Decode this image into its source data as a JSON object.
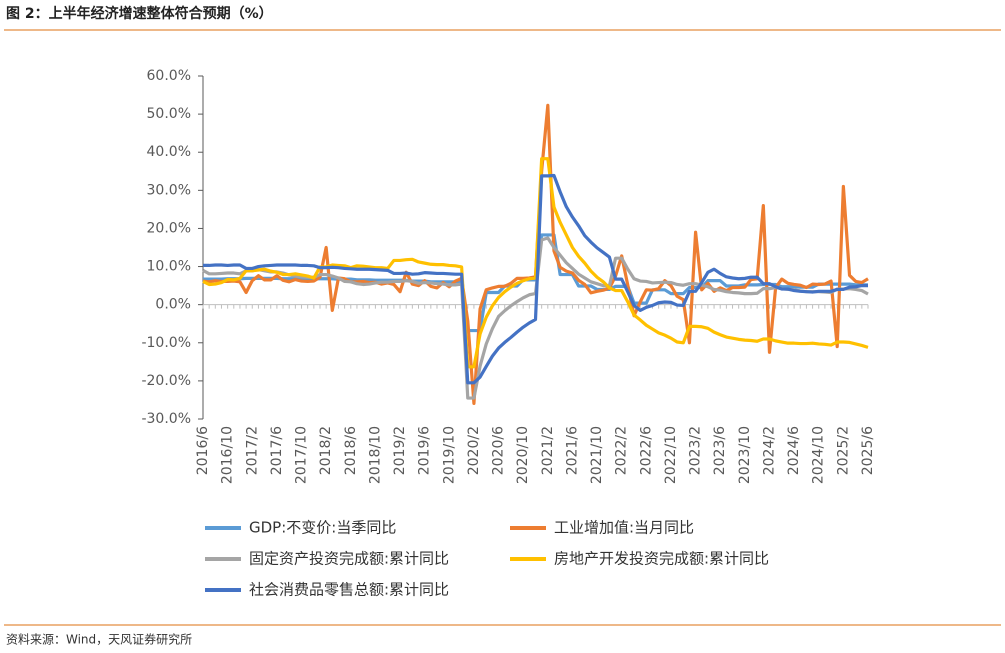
{
  "chart_data": {
    "type": "line",
    "title": "图 2：上半年经济增速整体符合预期（%）",
    "source": "资料来源：Wind，天风证券研究所",
    "categories": [
      "2016/6",
      null,
      null,
      null,
      "2016/10",
      null,
      null,
      null,
      "2017/2",
      null,
      null,
      null,
      "2017/6",
      null,
      null,
      null,
      "2017/10",
      null,
      null,
      null,
      "2018/2",
      null,
      null,
      null,
      "2018/6",
      null,
      null,
      null,
      "2018/10",
      null,
      null,
      null,
      "2019/2",
      null,
      null,
      null,
      "2019/6",
      null,
      null,
      null,
      "2019/10",
      null,
      null,
      null,
      "2020/2",
      null,
      null,
      null,
      "2020/6",
      null,
      null,
      null,
      "2020/10",
      null,
      null,
      null,
      "2021/2",
      null,
      null,
      null,
      "2021/6",
      null,
      null,
      null,
      "2021/10",
      null,
      null,
      null,
      "2022/2",
      null,
      null,
      null,
      "2022/6",
      null,
      null,
      null,
      "2022/10",
      null,
      null,
      null,
      "2023/2",
      null,
      null,
      null,
      "2023/6",
      null,
      null,
      null,
      "2023/10",
      null,
      null,
      null,
      "2024/2",
      null,
      null,
      null,
      "2024/6",
      null,
      null,
      null,
      "2024/10",
      null,
      null,
      null,
      "2025/2",
      null,
      null,
      null,
      "2025/6"
    ],
    "series": [
      {
        "name": "GDP:不变价:当季同比",
        "color": "#5b9bd5",
        "values": [
          6.7,
          6.7,
          6.7,
          6.7,
          6.8,
          6.8,
          6.8,
          6.9,
          6.9,
          6.9,
          6.9,
          6.9,
          6.9,
          6.8,
          6.8,
          6.8,
          6.8,
          6.8,
          6.8,
          6.8,
          6.8,
          6.8,
          6.7,
          6.7,
          6.7,
          6.5,
          6.5,
          6.5,
          6.4,
          6.4,
          6.4,
          6.4,
          6.4,
          6.4,
          6.2,
          6.2,
          6.2,
          6.0,
          6.0,
          6.0,
          6.0,
          6.0,
          6.0,
          -6.8,
          -6.8,
          -6.8,
          3.2,
          3.2,
          3.2,
          4.9,
          4.9,
          4.9,
          6.5,
          6.5,
          6.5,
          18.3,
          18.3,
          18.3,
          7.9,
          7.9,
          7.9,
          4.9,
          4.9,
          4.9,
          4.0,
          4.0,
          4.0,
          4.8,
          4.8,
          4.8,
          0.4,
          0.4,
          0.4,
          3.9,
          3.9,
          3.9,
          2.9,
          2.9,
          2.9,
          4.5,
          4.5,
          4.5,
          6.3,
          6.3,
          6.3,
          4.9,
          4.9,
          4.9,
          5.2,
          5.2,
          5.2,
          5.3,
          5.3,
          5.3,
          4.7,
          4.7,
          4.7,
          4.6,
          4.6,
          4.6,
          5.4,
          5.4,
          5.4,
          5.4,
          5.4,
          5.4,
          5.2,
          5.2,
          5.2
        ]
      },
      {
        "name": "工业增加值:当月同比",
        "color": "#ed7d31",
        "values": [
          6.2,
          6.0,
          6.3,
          6.1,
          6.1,
          6.2,
          6.0,
          3.2,
          6.3,
          7.6,
          6.5,
          6.5,
          7.6,
          6.4,
          6.0,
          6.6,
          6.2,
          6.1,
          6.2,
          7.2,
          15.0,
          -1.5,
          7.0,
          6.8,
          6.0,
          6.0,
          6.1,
          5.8,
          5.9,
          5.4,
          5.7,
          5.3,
          3.4,
          8.5,
          5.4,
          5.0,
          6.3,
          4.8,
          4.4,
          5.8,
          4.7,
          6.2,
          6.9,
          -4.3,
          -25.9,
          -1.1,
          3.9,
          4.4,
          4.8,
          4.8,
          5.6,
          6.9,
          6.9,
          7.0,
          7.3,
          35.1,
          52.3,
          14.1,
          9.8,
          8.8,
          8.3,
          6.4,
          5.3,
          3.1,
          3.5,
          3.8,
          4.3,
          7.5,
          12.8,
          5.0,
          -2.9,
          0.7,
          3.9,
          3.8,
          4.2,
          6.3,
          5.0,
          2.2,
          1.3,
          -10.0,
          19.0,
          3.9,
          5.6,
          3.5,
          4.4,
          3.7,
          4.5,
          4.5,
          4.6,
          6.6,
          6.8,
          26.0,
          -12.5,
          4.5,
          6.7,
          5.6,
          5.3,
          5.1,
          4.5,
          5.4,
          5.3,
          5.4,
          6.2,
          -11.0,
          31.0,
          7.7,
          6.1,
          5.8,
          6.8
        ]
      },
      {
        "name": "固定资产投资完成额:累计同比",
        "color": "#a5a5a5",
        "values": [
          9.0,
          8.1,
          8.1,
          8.2,
          8.3,
          8.3,
          8.1,
          8.9,
          8.9,
          9.2,
          8.9,
          8.6,
          8.6,
          8.3,
          7.8,
          7.5,
          7.3,
          7.2,
          7.2,
          7.9,
          7.9,
          7.5,
          7.0,
          6.1,
          6.0,
          5.5,
          5.3,
          5.4,
          5.7,
          5.9,
          5.9,
          6.1,
          6.1,
          6.3,
          6.1,
          5.6,
          5.8,
          5.7,
          5.5,
          5.4,
          5.2,
          5.2,
          5.4,
          -24.5,
          -24.5,
          -16.1,
          -10.3,
          -6.3,
          -3.1,
          -1.6,
          -0.3,
          0.8,
          1.8,
          2.6,
          2.9,
          17.0,
          17.5,
          15.0,
          13.0,
          11.0,
          9.5,
          8.0,
          7.0,
          6.0,
          5.5,
          5.0,
          4.9,
          12.2,
          12.2,
          9.3,
          6.8,
          6.2,
          6.1,
          5.7,
          5.8,
          5.9,
          5.8,
          5.3,
          5.1,
          5.5,
          5.5,
          5.1,
          4.7,
          4.0,
          3.8,
          3.4,
          3.2,
          3.1,
          2.9,
          2.9,
          3.0,
          4.2,
          4.2,
          4.5,
          4.2,
          4.0,
          3.9,
          3.6,
          3.4,
          3.4,
          3.4,
          3.3,
          3.2,
          4.1,
          4.1,
          4.2,
          4.0,
          3.7,
          2.8
        ]
      },
      {
        "name": "房地产开发投资完成额:累计同比",
        "color": "#ffc000",
        "values": [
          6.1,
          5.3,
          5.4,
          5.8,
          6.6,
          6.5,
          6.9,
          8.9,
          8.9,
          9.1,
          9.3,
          8.8,
          8.5,
          7.9,
          7.9,
          8.1,
          7.8,
          7.5,
          7.0,
          9.9,
          9.9,
          10.4,
          10.3,
          10.2,
          9.7,
          10.2,
          10.1,
          9.9,
          9.7,
          9.7,
          9.5,
          11.6,
          11.6,
          11.8,
          11.9,
          11.2,
          10.9,
          10.6,
          10.5,
          10.5,
          10.3,
          10.2,
          9.9,
          -16.3,
          -16.3,
          -7.7,
          -3.3,
          -0.3,
          1.9,
          3.4,
          4.6,
          5.6,
          6.3,
          6.8,
          7.0,
          38.3,
          38.3,
          25.6,
          21.6,
          18.3,
          15.0,
          12.7,
          10.9,
          8.8,
          7.2,
          6.0,
          4.4,
          3.7,
          3.7,
          0.7,
          -2.7,
          -4.0,
          -5.4,
          -6.4,
          -7.4,
          -8.0,
          -8.8,
          -9.8,
          -10.0,
          -5.7,
          -5.7,
          -5.8,
          -6.2,
          -7.2,
          -7.9,
          -8.5,
          -8.8,
          -9.1,
          -9.3,
          -9.4,
          -9.6,
          -9.0,
          -9.0,
          -9.5,
          -9.8,
          -10.1,
          -10.1,
          -10.2,
          -10.2,
          -10.1,
          -10.3,
          -10.4,
          -10.6,
          -9.8,
          -9.8,
          -9.9,
          -10.3,
          -10.7,
          -11.2
        ]
      },
      {
        "name": "社会消费品零售总额:累计同比",
        "color": "#4472c4",
        "values": [
          10.3,
          10.3,
          10.4,
          10.4,
          10.3,
          10.4,
          10.4,
          9.5,
          9.5,
          10.0,
          10.2,
          10.3,
          10.4,
          10.4,
          10.4,
          10.4,
          10.3,
          10.3,
          10.2,
          9.7,
          9.7,
          9.8,
          9.7,
          9.5,
          9.4,
          9.3,
          9.3,
          9.3,
          9.2,
          9.1,
          9.0,
          8.2,
          8.2,
          8.3,
          8.0,
          8.1,
          8.4,
          8.3,
          8.2,
          8.2,
          8.1,
          8.0,
          8.0,
          -20.5,
          -20.5,
          -19.0,
          -16.2,
          -13.5,
          -11.4,
          -9.9,
          -8.6,
          -7.2,
          -5.9,
          -4.8,
          -3.9,
          33.8,
          33.8,
          33.9,
          29.6,
          25.7,
          23.0,
          20.7,
          18.1,
          16.4,
          14.9,
          13.7,
          12.5,
          6.7,
          6.7,
          3.3,
          -0.2,
          -1.5,
          -0.7,
          -0.2,
          0.5,
          0.7,
          0.6,
          -0.1,
          -0.2,
          3.5,
          3.5,
          5.8,
          8.5,
          9.3,
          8.2,
          7.3,
          7.0,
          6.8,
          6.9,
          7.2,
          7.2,
          5.5,
          5.5,
          4.7,
          4.1,
          4.1,
          3.7,
          3.5,
          3.4,
          3.3,
          3.5,
          3.5,
          3.5,
          4.0,
          4.0,
          4.6,
          4.7,
          5.0,
          5.0
        ]
      }
    ],
    "ylim": [
      -30,
      60
    ],
    "yticks": [
      {
        "value": -30,
        "label": "-30.0%"
      },
      {
        "value": -20,
        "label": "-20.0%"
      },
      {
        "value": -10,
        "label": "-10.0%"
      },
      {
        "value": 0,
        "label": "0.0%"
      },
      {
        "value": 10,
        "label": "10.0%"
      },
      {
        "value": 20,
        "label": "20.0%"
      },
      {
        "value": 30,
        "label": "30.0%"
      },
      {
        "value": 40,
        "label": "40.0%"
      },
      {
        "value": 50,
        "label": "50.0%"
      },
      {
        "value": 60,
        "label": "60.0%"
      }
    ],
    "grid": false
  }
}
